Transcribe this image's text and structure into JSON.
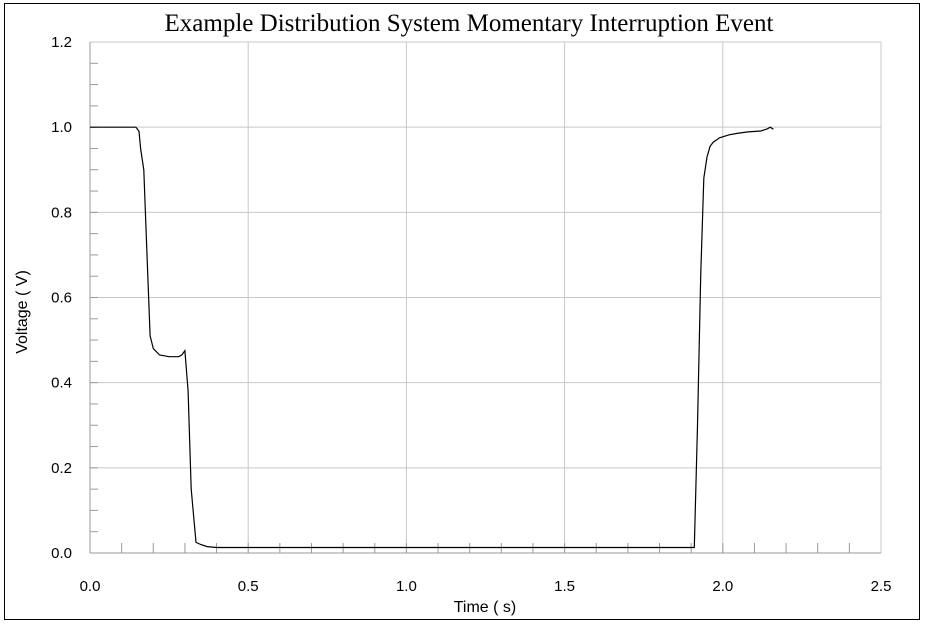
{
  "chart_data": {
    "type": "line",
    "title": "Example Distribution System Momentary Interruption Event",
    "xlabel": "Time ( s)",
    "ylabel": "Voltage ( V)",
    "xlim": [
      0,
      2.5
    ],
    "ylim": [
      0,
      1.2
    ],
    "x_ticks": [
      "0.0",
      "0.5",
      "1.0",
      "1.5",
      "2.0",
      "2.5"
    ],
    "y_ticks": [
      "0.0",
      "0.2",
      "0.4",
      "0.6",
      "0.8",
      "1.0",
      "1.2"
    ],
    "grid": true,
    "series": [
      {
        "x": [
          0.0,
          0.05,
          0.1,
          0.145,
          0.155,
          0.16,
          0.17,
          0.18,
          0.19,
          0.2,
          0.22,
          0.25,
          0.28,
          0.29,
          0.295,
          0.3,
          0.31,
          0.32,
          0.335,
          0.35,
          0.37,
          0.4,
          0.5,
          0.8,
          1.0,
          1.2,
          1.5,
          1.7,
          1.85,
          1.91,
          1.92,
          1.93,
          1.94,
          1.95,
          1.96,
          1.97,
          1.99,
          2.02,
          2.05,
          2.08,
          2.12,
          2.14,
          2.15,
          2.16
        ],
        "y": [
          1.0,
          1.0,
          1.0,
          1.0,
          0.99,
          0.95,
          0.9,
          0.7,
          0.51,
          0.48,
          0.465,
          0.461,
          0.461,
          0.465,
          0.47,
          0.475,
          0.38,
          0.15,
          0.025,
          0.02,
          0.015,
          0.013,
          0.013,
          0.013,
          0.013,
          0.013,
          0.013,
          0.013,
          0.013,
          0.013,
          0.3,
          0.65,
          0.88,
          0.93,
          0.955,
          0.965,
          0.975,
          0.982,
          0.986,
          0.989,
          0.991,
          0.996,
          1.0,
          0.995
        ]
      }
    ]
  }
}
